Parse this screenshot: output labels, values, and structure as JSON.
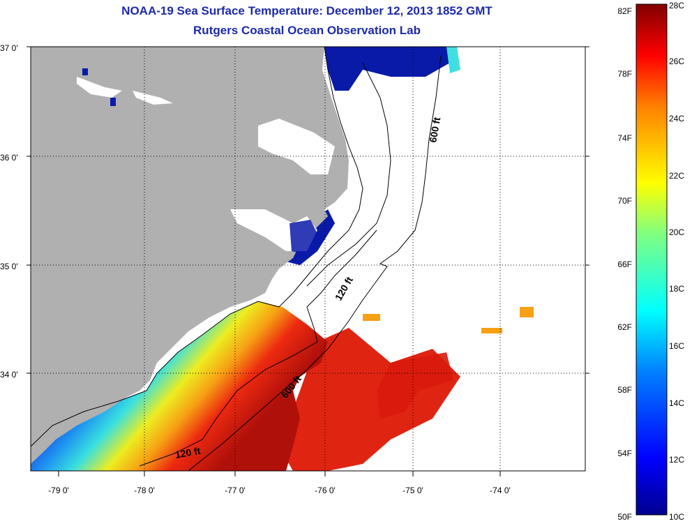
{
  "title": {
    "line1": "NOAA-19 Sea Surface Temperature:  December 12, 2013 1852 GMT",
    "line2": "Rutgers Coastal Ocean Observation Lab"
  },
  "map": {
    "lat_labels": [
      "37 0'",
      "36 0'",
      "35 0'",
      "34 0'"
    ],
    "lon_labels": [
      "-79 0'",
      "-78 0'",
      "-77 0'",
      "-76 0'",
      "-75 0'",
      "-74 0'"
    ],
    "isobaths": [
      "600 ft",
      "120 ft",
      "600 ft",
      "120 ft"
    ]
  },
  "legend": {
    "fahrenheit": [
      "82F",
      "78F",
      "74F",
      "70F",
      "66F",
      "62F",
      "58F",
      "54F",
      "50F"
    ],
    "celsius": [
      "28C",
      "26C",
      "24C",
      "22C",
      "20C",
      "18C",
      "16C",
      "14C",
      "12C",
      "10C"
    ]
  },
  "colors": {
    "land": "#b0b0b0",
    "title": "#1c2aa8",
    "warm": "#d81a0c",
    "cold": "#0a1aa8"
  }
}
